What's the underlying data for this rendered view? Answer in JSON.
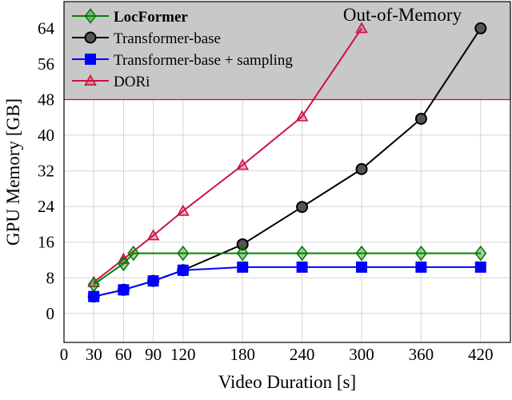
{
  "chart_data": {
    "type": "line",
    "title": "",
    "xlabel": "Video Duration [s]",
    "ylabel": "GPU Memory [GB]",
    "xlim": [
      0,
      450
    ],
    "ylim": [
      -6.5,
      70
    ],
    "xticks": [
      0,
      30,
      60,
      90,
      120,
      180,
      240,
      300,
      360,
      420
    ],
    "yticks": [
      0,
      8,
      16,
      24,
      32,
      40,
      48,
      56,
      64
    ],
    "grid": true,
    "legend_position": "top-left",
    "region": {
      "label": "Out-of-Memory",
      "y_from": 48,
      "color": "#c8c8c8",
      "border_color": "#ff0000"
    },
    "series": [
      {
        "name": "LocFormer",
        "bold": true,
        "color": "#008000",
        "marker": "diamond",
        "x": [
          30,
          60,
          70,
          120,
          180,
          240,
          300,
          360,
          420
        ],
        "y": [
          6.5,
          11.2,
          13.5,
          13.5,
          13.5,
          13.5,
          13.5,
          13.5,
          13.5
        ]
      },
      {
        "name": "Transformer-base",
        "color": "#000000",
        "marker": "circle",
        "x": [
          30,
          60,
          90,
          120,
          180,
          240,
          300,
          360,
          420
        ],
        "y": [
          3.8,
          5.3,
          7.3,
          9.7,
          15.5,
          23.9,
          32.4,
          43.7,
          64
        ]
      },
      {
        "name": "Transformer-base + sampling",
        "color": "#0000ff",
        "marker": "square",
        "x": [
          30,
          60,
          90,
          120,
          180,
          240,
          300,
          360,
          420
        ],
        "y": [
          3.8,
          5.3,
          7.3,
          9.7,
          10.4,
          10.4,
          10.4,
          10.4,
          10.4
        ]
      },
      {
        "name": "DORi",
        "color": "#cc1144",
        "marker": "triangle",
        "x": [
          30,
          60,
          90,
          120,
          180,
          240,
          300
        ],
        "y": [
          7.0,
          12.2,
          17.5,
          23.0,
          33.3,
          44.2,
          64
        ]
      }
    ]
  }
}
